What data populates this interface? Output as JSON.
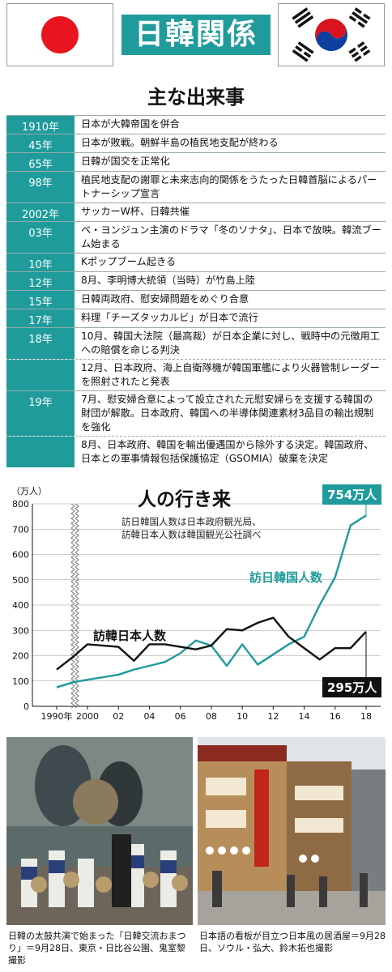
{
  "header": {
    "title": "日韓関係"
  },
  "events": {
    "title": "主な出来事",
    "rows": [
      {
        "year": "1910年",
        "entries": [
          "日本が大韓帝国を併合"
        ]
      },
      {
        "year": "45年",
        "entries": [
          "日本が敗戦。朝鮮半島の植民地支配が終わる"
        ]
      },
      {
        "year": "65年",
        "entries": [
          "日韓が国交を正常化"
        ]
      },
      {
        "year": "98年",
        "entries": [
          "植民地支配の謝罪と未来志向的関係をうたった日韓首脳によるパートナーシップ宣言"
        ]
      },
      {
        "year": "2002年",
        "entries": [
          "サッカーW杯、日韓共催"
        ]
      },
      {
        "year": "03年",
        "entries": [
          "ペ・ヨンジュン主演のドラマ「冬のソナタ」、日本で放映。韓流ブーム始まる"
        ]
      },
      {
        "year": "10年",
        "entries": [
          "Kポップブーム起きる"
        ]
      },
      {
        "year": "12年",
        "entries": [
          "8月、李明博大統領（当時）が竹島上陸"
        ]
      },
      {
        "year": "15年",
        "entries": [
          "日韓両政府、慰安婦問題をめぐり合意"
        ]
      },
      {
        "year": "17年",
        "entries": [
          "料理「チーズタッカルビ」が日本で流行"
        ]
      },
      {
        "year": "18年",
        "entries": [
          "10月、韓国大法院（最高裁）が日本企業に対し、戦時中の元徴用工への賠償を命じる判決",
          "12月、日本政府、海上自衛隊機が韓国軍艦により火器管制レーダーを照射されたと発表"
        ]
      },
      {
        "year": "19年",
        "entries": [
          "7月、慰安婦合意によって設立された元慰安婦らを支援する韓国の財団が解散。日本政府、韓国への半導体関連素材3品目の輸出規制を強化",
          "8月、日本政府、韓国を輸出優遇国から除外する決定。韓国政府、日本との軍事情報包括保護協定（GSOMIA）破棄を決定"
        ]
      }
    ]
  },
  "chart_data": {
    "type": "line",
    "title": "人の行き来",
    "notes": [
      "訪日韓国人数は日本政府観光局、",
      "訪韓日本人数は韓国観光公社調べ"
    ],
    "unit": "（万人）",
    "ylim": [
      0,
      800
    ],
    "yticks": [
      0,
      100,
      200,
      300,
      400,
      500,
      600,
      700,
      800
    ],
    "x": [
      1990,
      1998,
      2000,
      2002,
      2003,
      2004,
      2005,
      2006,
      2007,
      2008,
      2009,
      2010,
      2011,
      2012,
      2013,
      2014,
      2015,
      2016,
      2017,
      2018
    ],
    "xtick_labels": [
      "1990年",
      "2000",
      "02",
      "04",
      "06",
      "08",
      "10",
      "12",
      "14",
      "16",
      "18"
    ],
    "xtick_values": [
      1990,
      2000,
      2002,
      2004,
      2006,
      2008,
      2010,
      2012,
      2014,
      2016,
      2018
    ],
    "axis_break": true,
    "series": [
      {
        "name": "訪日韓国人数",
        "color": "#1f9b9b",
        "values": [
          75,
          95,
          105,
          125,
          145,
          160,
          175,
          210,
          260,
          240,
          160,
          245,
          165,
          205,
          245,
          275,
          400,
          510,
          715,
          754
        ]
      },
      {
        "name": "訪韓日本人数",
        "color": "#111111",
        "values": [
          145,
          195,
          245,
          235,
          180,
          245,
          245,
          235,
          225,
          240,
          305,
          300,
          330,
          350,
          275,
          230,
          185,
          230,
          230,
          295
        ]
      }
    ],
    "callouts": [
      {
        "text": "754万人",
        "series": 0,
        "color": "#1f9b9b"
      },
      {
        "text": "295万人",
        "series": 1,
        "color": "#111111"
      }
    ]
  },
  "photos": [
    {
      "caption": "日韓の太鼓共演で始まった「日韓交流おまつり」＝9月28日、東京・日比谷公園、鬼室黎撮影"
    },
    {
      "caption": "日本語の看板が目立つ日本風の居酒屋＝9月28日、ソウル・弘大、鈴木拓也撮影"
    }
  ]
}
